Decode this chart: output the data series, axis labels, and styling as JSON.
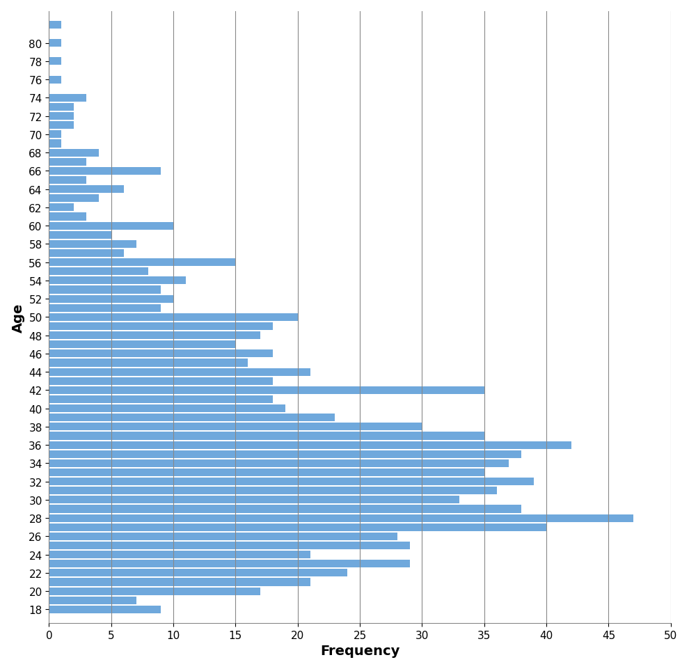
{
  "ages": [
    82,
    81,
    80,
    79,
    78,
    77,
    76,
    75,
    74,
    73,
    72,
    71,
    70,
    69,
    68,
    67,
    66,
    65,
    64,
    63,
    62,
    61,
    60,
    59,
    58,
    57,
    56,
    55,
    54,
    53,
    52,
    51,
    50,
    49,
    48,
    47,
    46,
    45,
    44,
    43,
    42,
    41,
    40,
    39,
    38,
    37,
    36,
    35,
    34,
    33,
    32,
    31,
    30,
    29,
    28,
    27,
    26,
    25,
    24,
    23,
    22,
    21,
    20,
    19,
    18
  ],
  "frequencies": [
    1,
    0,
    1,
    0,
    1,
    0,
    1,
    0,
    3,
    2,
    2,
    2,
    1,
    1,
    4,
    3,
    9,
    3,
    6,
    4,
    2,
    3,
    10,
    5,
    7,
    6,
    15,
    8,
    11,
    9,
    10,
    9,
    20,
    18,
    17,
    15,
    18,
    16,
    21,
    18,
    35,
    18,
    19,
    23,
    30,
    35,
    42,
    38,
    37,
    35,
    39,
    36,
    33,
    38,
    47,
    40,
    28,
    29,
    21,
    29,
    24,
    21,
    17,
    7,
    9
  ],
  "bar_color": "#6fa8dc",
  "xlabel": "Frequency",
  "ylabel": "Age",
  "xlim": [
    0,
    50
  ],
  "xticks": [
    0,
    5,
    10,
    15,
    20,
    25,
    30,
    35,
    40,
    45,
    50
  ],
  "ytick_labels": [
    18,
    20,
    22,
    24,
    26,
    28,
    30,
    32,
    34,
    36,
    38,
    40,
    42,
    44,
    46,
    48,
    50,
    52,
    54,
    56,
    58,
    60,
    62,
    64,
    66,
    68,
    70,
    72,
    74,
    76,
    78,
    80
  ],
  "background_color": "#ffffff",
  "grid_color": "#888888",
  "xlabel_fontsize": 14,
  "ylabel_fontsize": 14,
  "tick_fontsize": 11
}
